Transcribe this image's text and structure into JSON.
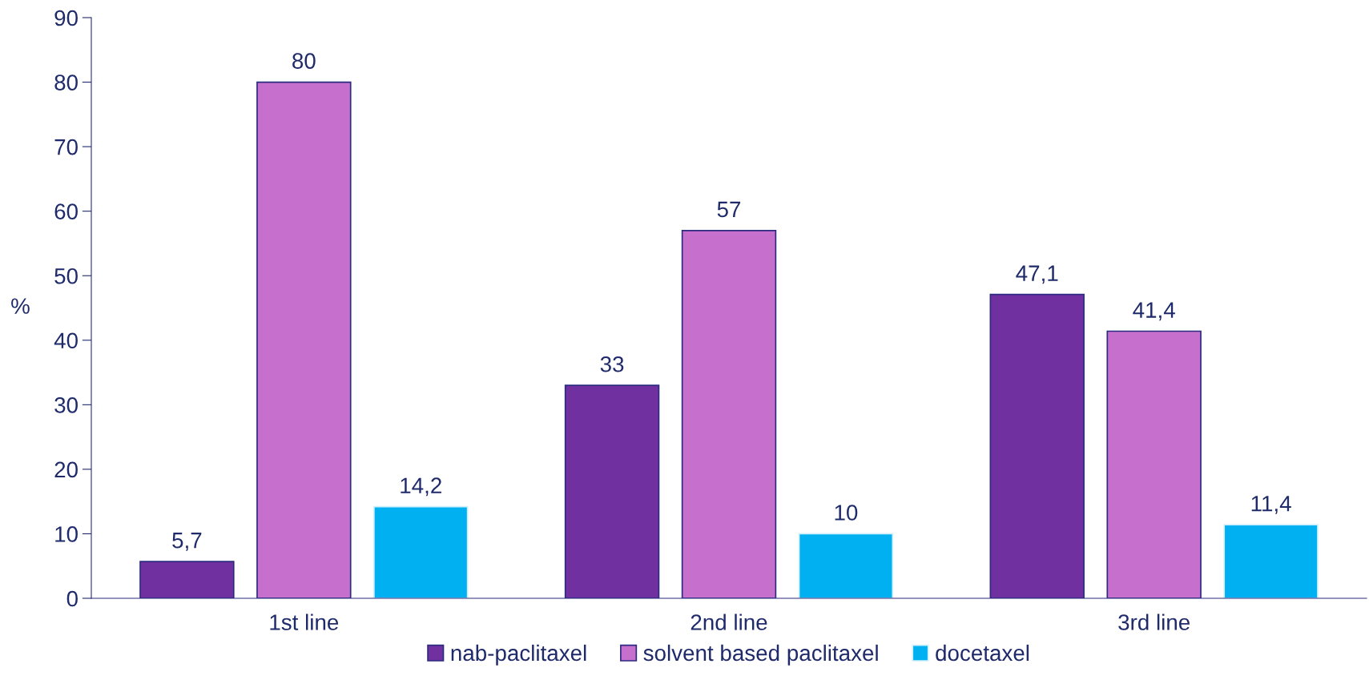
{
  "chart_data": {
    "type": "bar",
    "ylabel": "%",
    "categories": [
      "1st line",
      "2nd line",
      "3rd line"
    ],
    "series": [
      {
        "name": "nab-paclitaxel",
        "color": "#7030a0",
        "values": [
          5.7,
          33,
          47.1
        ],
        "value_labels": [
          "5,7",
          "33",
          "47,1"
        ]
      },
      {
        "name": "solvent based paclitaxel",
        "color": "#c66fcc",
        "values": [
          80,
          57,
          41.4
        ],
        "value_labels": [
          "80",
          "57",
          "41,4"
        ]
      },
      {
        "name": "docetaxel",
        "color": "#00b0f0",
        "values": [
          14.2,
          10,
          11.4
        ],
        "value_labels": [
          "14,2",
          "10",
          "11,4"
        ]
      }
    ],
    "ylim": [
      0,
      90
    ],
    "yticks": [
      0,
      10,
      20,
      30,
      40,
      50,
      60,
      70,
      80,
      90
    ],
    "grid": false,
    "legend": "bottom"
  }
}
